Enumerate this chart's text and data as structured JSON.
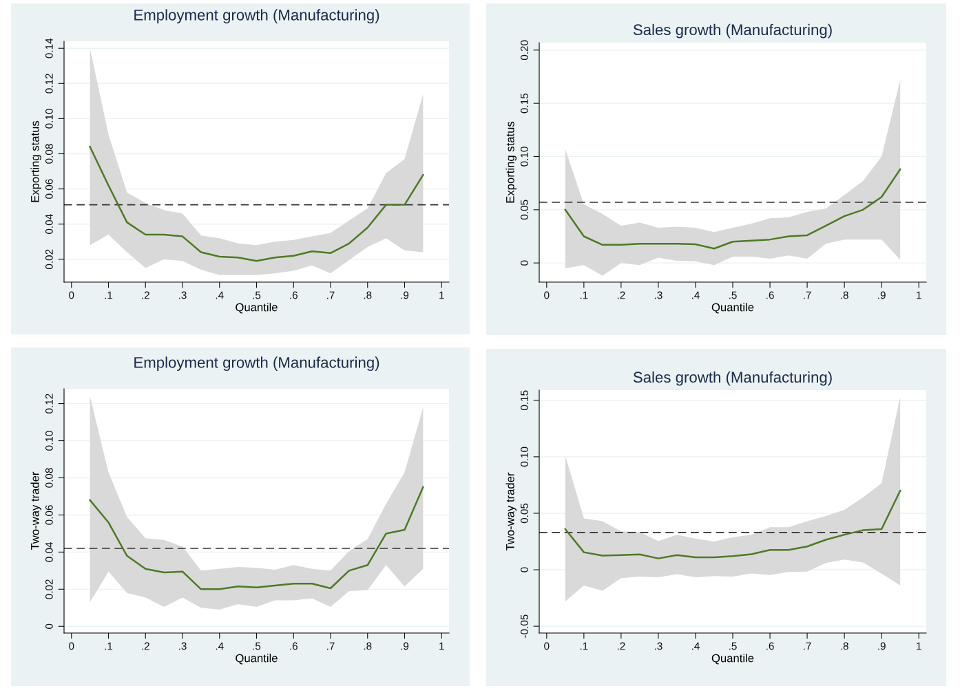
{
  "chart_data": [
    {
      "type": "line",
      "title": "Employment growth (Manufacturing)",
      "xlabel": "Quantile",
      "ylabel": "Exporting status",
      "x": [
        0.05,
        0.1,
        0.15,
        0.2,
        0.25,
        0.3,
        0.35,
        0.4,
        0.45,
        0.5,
        0.55,
        0.6,
        0.65,
        0.7,
        0.75,
        0.8,
        0.85,
        0.9,
        0.95
      ],
      "series": [
        {
          "color": "#4e7a26",
          "values": [
            0.084,
            0.062,
            0.041,
            0.034,
            0.034,
            0.033,
            0.024,
            0.0215,
            0.021,
            0.019,
            0.021,
            0.022,
            0.0245,
            0.0235,
            0.029,
            0.038,
            0.051,
            0.051,
            0.068
          ],
          "upper": [
            0.14,
            0.091,
            0.058,
            0.052,
            0.048,
            0.046,
            0.0335,
            0.032,
            0.029,
            0.028,
            0.03,
            0.031,
            0.033,
            0.035,
            0.042,
            0.049,
            0.069,
            0.077,
            0.114
          ],
          "lower": [
            0.028,
            0.034,
            0.024,
            0.015,
            0.02,
            0.019,
            0.014,
            0.011,
            0.011,
            0.011,
            0.012,
            0.0135,
            0.0165,
            0.012,
            0.0195,
            0.027,
            0.032,
            0.025,
            0.024
          ]
        }
      ],
      "ref_lines": [
        {
          "axis": "y",
          "value": 0.051,
          "color": "#333333",
          "line_style": "dashed"
        }
      ],
      "xlim": [
        -0.02,
        1.02
      ],
      "xticks": [
        0,
        {
          "value": 0.1,
          "label": ".1"
        },
        {
          "value": 0.2,
          "label": ".2"
        },
        {
          "value": 0.3,
          "label": ".3"
        },
        {
          "value": 0.4,
          "label": ".4"
        },
        {
          "value": 0.5,
          "label": ".5"
        },
        {
          "value": 0.6,
          "label": ".6"
        },
        {
          "value": 0.7,
          "label": ".7"
        },
        {
          "value": 0.8,
          "label": ".8"
        },
        {
          "value": 0.9,
          "label": ".9"
        },
        1
      ],
      "ylim": [
        0.007,
        0.144
      ],
      "yticks": [
        {
          "value": 0.02,
          "label": "0.02"
        },
        {
          "value": 0.04,
          "label": "0.04"
        },
        {
          "value": 0.06,
          "label": "0.06"
        },
        {
          "value": 0.08,
          "label": "0.08"
        },
        {
          "value": 0.1,
          "label": "0.10"
        },
        {
          "value": 0.12,
          "label": "0.12"
        },
        {
          "value": 0.14,
          "label": "0.14"
        }
      ],
      "grid": "y"
    },
    {
      "type": "line",
      "title": "Sales growth (Manufacturing)",
      "xlabel": "Quantile",
      "ylabel": "Exporting status",
      "x": [
        0.05,
        0.1,
        0.15,
        0.2,
        0.25,
        0.3,
        0.35,
        0.4,
        0.45,
        0.5,
        0.55,
        0.6,
        0.65,
        0.7,
        0.75,
        0.8,
        0.85,
        0.9,
        0.95
      ],
      "series": [
        {
          "color": "#4e7a26",
          "values": [
            0.05,
            0.025,
            0.017,
            0.017,
            0.018,
            0.018,
            0.018,
            0.0175,
            0.0135,
            0.02,
            0.021,
            0.022,
            0.025,
            0.026,
            0.035,
            0.044,
            0.05,
            0.062,
            0.088
          ],
          "upper": [
            0.107,
            0.055,
            0.046,
            0.035,
            0.038,
            0.033,
            0.034,
            0.033,
            0.029,
            0.033,
            0.037,
            0.042,
            0.043,
            0.048,
            0.051,
            0.064,
            0.077,
            0.1,
            0.172
          ],
          "lower": [
            -0.005,
            -0.002,
            -0.012,
            0,
            -0.002,
            0.005,
            0.002,
            0.0015,
            -0.002,
            0.006,
            0.006,
            0.004,
            0.007,
            0.004,
            0.018,
            0.022,
            0.022,
            0.022,
            0.003
          ]
        }
      ],
      "ref_lines": [
        {
          "axis": "y",
          "value": 0.057,
          "color": "#333333",
          "line_style": "dashed"
        }
      ],
      "xlim": [
        -0.02,
        1.02
      ],
      "xticks": [
        0,
        {
          "value": 0.1,
          "label": ".1"
        },
        {
          "value": 0.2,
          "label": ".2"
        },
        {
          "value": 0.3,
          "label": ".3"
        },
        {
          "value": 0.4,
          "label": ".4"
        },
        {
          "value": 0.5,
          "label": ".5"
        },
        {
          "value": 0.6,
          "label": ".6"
        },
        {
          "value": 0.7,
          "label": ".7"
        },
        {
          "value": 0.8,
          "label": ".8"
        },
        {
          "value": 0.9,
          "label": ".9"
        },
        1
      ],
      "ylim": [
        -0.018,
        0.207
      ],
      "yticks": [
        0,
        {
          "value": 0.05,
          "label": "0.05"
        },
        {
          "value": 0.1,
          "label": "0.10"
        },
        {
          "value": 0.15,
          "label": "0.15"
        },
        {
          "value": 0.2,
          "label": "0.20"
        }
      ],
      "grid": "y"
    },
    {
      "type": "line",
      "title": "Employment growth (Manufacturing)",
      "xlabel": "Quantile",
      "ylabel": "Two-way trader",
      "x": [
        0.05,
        0.1,
        0.15,
        0.2,
        0.25,
        0.3,
        0.35,
        0.4,
        0.45,
        0.5,
        0.55,
        0.6,
        0.65,
        0.7,
        0.75,
        0.8,
        0.85,
        0.9,
        0.95
      ],
      "series": [
        {
          "color": "#4e7a26",
          "values": [
            0.068,
            0.056,
            0.038,
            0.031,
            0.029,
            0.0295,
            0.02,
            0.02,
            0.0215,
            0.021,
            0.022,
            0.023,
            0.023,
            0.0205,
            0.03,
            0.033,
            0.05,
            0.052,
            0.075
          ],
          "upper": [
            0.124,
            0.083,
            0.059,
            0.0475,
            0.0465,
            0.043,
            0.03,
            0.031,
            0.032,
            0.0315,
            0.0305,
            0.033,
            0.031,
            0.03,
            0.0405,
            0.047,
            0.066,
            0.083,
            0.118
          ],
          "lower": [
            0.013,
            0.0295,
            0.018,
            0.0155,
            0.0105,
            0.0155,
            0.01,
            0.009,
            0.012,
            0.0105,
            0.014,
            0.014,
            0.015,
            0.0105,
            0.019,
            0.0195,
            0.033,
            0.0215,
            0.031
          ]
        }
      ],
      "ref_lines": [
        {
          "axis": "y",
          "value": 0.042,
          "color": "#333333",
          "line_style": "dashed"
        }
      ],
      "xlim": [
        -0.02,
        1.02
      ],
      "xticks": [
        0,
        {
          "value": 0.1,
          "label": ".1"
        },
        {
          "value": 0.2,
          "label": ".2"
        },
        {
          "value": 0.3,
          "label": ".3"
        },
        {
          "value": 0.4,
          "label": ".4"
        },
        {
          "value": 0.5,
          "label": ".5"
        },
        {
          "value": 0.6,
          "label": ".6"
        },
        {
          "value": 0.7,
          "label": ".7"
        },
        {
          "value": 0.8,
          "label": ".8"
        },
        {
          "value": 0.9,
          "label": ".9"
        },
        1
      ],
      "ylim": [
        -0.0036,
        0.128
      ],
      "yticks": [
        0,
        {
          "value": 0.02,
          "label": "0.02"
        },
        {
          "value": 0.04,
          "label": "0.04"
        },
        {
          "value": 0.06,
          "label": "0.06"
        },
        {
          "value": 0.08,
          "label": "0.08"
        },
        {
          "value": 0.1,
          "label": "0.10"
        },
        {
          "value": 0.12,
          "label": "0.12"
        }
      ],
      "grid": "y"
    },
    {
      "type": "line",
      "title": "Sales growth (Manufacturing)",
      "xlabel": "Quantile",
      "ylabel": "Two-way trader",
      "x": [
        0.05,
        0.1,
        0.15,
        0.2,
        0.25,
        0.3,
        0.35,
        0.4,
        0.45,
        0.5,
        0.55,
        0.6,
        0.65,
        0.7,
        0.75,
        0.8,
        0.85,
        0.9,
        0.95
      ],
      "series": [
        {
          "color": "#4e7a26",
          "values": [
            0.036,
            0.0155,
            0.0125,
            0.013,
            0.0136,
            0.01,
            0.013,
            0.011,
            0.011,
            0.012,
            0.0137,
            0.0176,
            0.0176,
            0.0206,
            0.0265,
            0.031,
            0.035,
            0.036,
            0.07
          ],
          "upper": [
            0.101,
            0.0456,
            0.043,
            0.034,
            0.0335,
            0.0253,
            0.031,
            0.0276,
            0.025,
            0.0288,
            0.031,
            0.0376,
            0.0376,
            0.043,
            0.0475,
            0.053,
            0.064,
            0.0766,
            0.153
          ],
          "lower": [
            -0.028,
            -0.014,
            -0.0185,
            -0.0075,
            -0.006,
            -0.0067,
            -0.004,
            -0.0067,
            -0.0056,
            -0.006,
            -0.0033,
            -0.0047,
            -0.002,
            -0.0016,
            0.006,
            0.009,
            0.0065,
            -0.0035,
            -0.0138
          ]
        }
      ],
      "ref_lines": [
        {
          "axis": "y",
          "value": 0.033,
          "color": "#333333",
          "line_style": "dashed"
        }
      ],
      "xlim": [
        -0.02,
        1.02
      ],
      "xticks": [
        0,
        {
          "value": 0.1,
          "label": ".1"
        },
        {
          "value": 0.2,
          "label": ".2"
        },
        {
          "value": 0.3,
          "label": ".3"
        },
        {
          "value": 0.4,
          "label": ".4"
        },
        {
          "value": 0.5,
          "label": ".5"
        },
        {
          "value": 0.6,
          "label": ".6"
        },
        {
          "value": 0.7,
          "label": ".7"
        },
        {
          "value": 0.8,
          "label": ".8"
        },
        {
          "value": 0.9,
          "label": ".9"
        },
        1
      ],
      "ylim": [
        -0.056,
        0.159
      ],
      "yticks": [
        {
          "value": -0.05,
          "label": "-0.05"
        },
        0,
        {
          "value": 0.05,
          "label": "0.05"
        },
        {
          "value": 0.1,
          "label": "0.10"
        },
        {
          "value": 0.15,
          "label": "0.15"
        }
      ],
      "grid": "y"
    }
  ]
}
